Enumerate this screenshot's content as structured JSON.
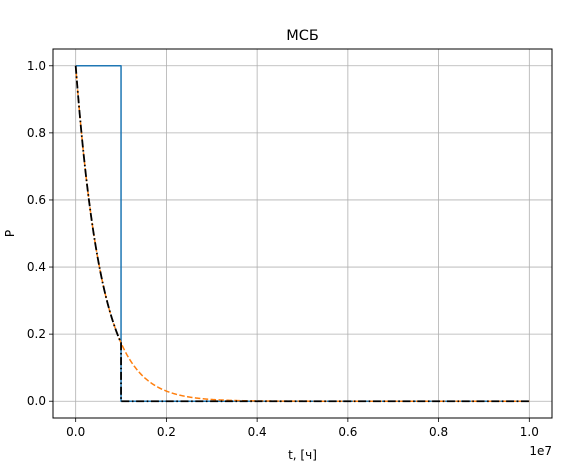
{
  "chart_data": {
    "type": "line",
    "title": "МСБ",
    "xlabel": "t, [ч]",
    "ylabel": "P",
    "x_offset_label": "1e7",
    "xlim": [
      -0.05,
      1.05
    ],
    "ylim": [
      -0.05,
      1.05
    ],
    "x_scale_note": "x values in units of 1e7",
    "grid": true,
    "legend": "none",
    "xticks": [
      0.0,
      0.2,
      0.4,
      0.6,
      0.8,
      1.0
    ],
    "xtick_labels": [
      "0.0",
      "0.2",
      "0.4",
      "0.6",
      "0.8",
      "1.0"
    ],
    "yticks": [
      0.0,
      0.2,
      0.4,
      0.6,
      0.8,
      1.0
    ],
    "ytick_labels": [
      "0.0",
      "0.2",
      "0.4",
      "0.6",
      "0.8",
      "1.0"
    ],
    "series": [
      {
        "style": "solid",
        "color": "#1f77b4",
        "kind": "step",
        "step_at": 0.1,
        "x_range": [
          0.0,
          1.0
        ],
        "value_before": 1.0,
        "value_after": 0.0
      },
      {
        "style": "dashed",
        "color": "#ff7f0e",
        "kind": "exponential",
        "rate": 17.5,
        "x_range": [
          0.0,
          1.0
        ]
      },
      {
        "style": "dashdot",
        "color": "#000000",
        "kind": "exponential-cutoff",
        "rate": 17.5,
        "cutoff": 0.1,
        "x_range": [
          0.0,
          1.0
        ]
      }
    ]
  }
}
